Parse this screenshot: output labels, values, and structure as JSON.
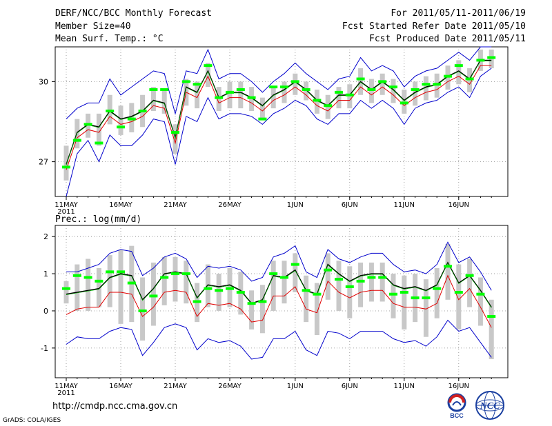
{
  "header": {
    "title": "DERF/NCC/BCC Monthly Forecast",
    "member_size": "Member Size=40",
    "variable": "Mean Surf. Temp.: °C",
    "period": "For 2011/05/11-2011/06/19",
    "start_date": "Fcst Started Refer Date 2011/05/10",
    "produced_date": "Fcst Produced Date 2011/05/11"
  },
  "footer": {
    "url": "http://cmdp.ncc.cma.gov.cn",
    "grads": "GrADS: COLA/IGES",
    "logo_bcc": "BCC",
    "logo_ncc": "NCC"
  },
  "colors": {
    "ensemble_mean": "#000000",
    "red_line": "#e00000",
    "envelope": "#0000cc",
    "control": "#00ff00",
    "box": "#c8c8c8"
  },
  "chart_data": [
    {
      "type": "line",
      "title": "Mean Surf. Temp.: °C",
      "x_tick_labels": [
        "11MAY",
        "16MAY",
        "21MAY",
        "26MAY",
        "1JUN",
        "6JUN",
        "11JUN",
        "16JUN"
      ],
      "x_tick_days": [
        0,
        5,
        10,
        15,
        21,
        26,
        31,
        36
      ],
      "year_label": "2011",
      "ylim": [
        25.7,
        31.3
      ],
      "yticks": [
        27,
        30
      ],
      "days": [
        0,
        1,
        2,
        3,
        4,
        5,
        6,
        7,
        8,
        9,
        10,
        11,
        12,
        13,
        14,
        15,
        16,
        17,
        18,
        19,
        20,
        21,
        22,
        23,
        24,
        25,
        26,
        27,
        28,
        29,
        30,
        31,
        32,
        33,
        34,
        35,
        36,
        37,
        38,
        39
      ],
      "series": [
        {
          "name": "mean",
          "values": [
            26.9,
            28.1,
            28.4,
            28.3,
            28.9,
            28.6,
            28.7,
            28.9,
            29.3,
            29.2,
            27.9,
            29.8,
            29.6,
            30.4,
            29.4,
            29.6,
            29.6,
            29.4,
            29.1,
            29.5,
            29.7,
            30.0,
            29.7,
            29.3,
            29.1,
            29.5,
            29.5,
            30.0,
            29.7,
            30.0,
            29.7,
            29.3,
            29.6,
            29.8,
            29.9,
            30.2,
            30.4,
            30.1,
            30.8,
            30.8
          ]
        },
        {
          "name": "red",
          "values": [
            26.7,
            27.9,
            28.2,
            28.1,
            28.7,
            28.4,
            28.5,
            28.7,
            29.1,
            29.0,
            27.7,
            29.6,
            29.4,
            30.2,
            29.2,
            29.4,
            29.4,
            29.2,
            28.9,
            29.3,
            29.5,
            29.8,
            29.5,
            29.1,
            28.9,
            29.3,
            29.3,
            29.8,
            29.5,
            29.8,
            29.5,
            29.1,
            29.4,
            29.6,
            29.7,
            30.0,
            30.2,
            29.9,
            30.6,
            30.6
          ]
        },
        {
          "name": "blue_upper",
          "values": [
            28.6,
            29.0,
            29.2,
            29.2,
            30.1,
            29.5,
            29.8,
            30.1,
            30.4,
            30.3,
            28.8,
            30.4,
            30.3,
            31.2,
            30.1,
            30.3,
            30.3,
            30.0,
            29.6,
            30.0,
            30.3,
            30.7,
            30.3,
            30.0,
            29.7,
            30.1,
            30.2,
            30.9,
            30.4,
            30.6,
            30.4,
            29.8,
            30.2,
            30.4,
            30.5,
            30.8,
            31.1,
            30.8,
            31.3,
            31.3
          ]
        },
        {
          "name": "blue_lower",
          "values": [
            25.7,
            27.3,
            27.8,
            27.0,
            28.0,
            27.6,
            27.6,
            28.0,
            28.6,
            28.5,
            26.9,
            28.7,
            28.5,
            29.4,
            28.6,
            28.8,
            28.8,
            28.7,
            28.4,
            28.8,
            29.0,
            29.3,
            29.1,
            28.6,
            28.4,
            28.8,
            28.8,
            29.3,
            29.0,
            29.3,
            29.0,
            28.4,
            29.0,
            29.2,
            29.3,
            29.6,
            29.8,
            29.4,
            30.2,
            30.5
          ]
        },
        {
          "name": "control",
          "values": [
            26.8,
            27.8,
            28.4,
            27.7,
            28.9,
            28.3,
            28.6,
            28.9,
            29.7,
            29.7,
            28.1,
            30.0,
            29.9,
            30.6,
            29.4,
            29.6,
            29.7,
            29.4,
            28.6,
            29.8,
            29.8,
            30.0,
            29.7,
            29.3,
            29.1,
            29.6,
            29.5,
            30.1,
            29.7,
            30.0,
            29.8,
            29.2,
            29.7,
            29.9,
            29.9,
            30.2,
            30.6,
            30.1,
            30.8,
            30.9
          ]
        }
      ],
      "box_low": [
        26.3,
        27.5,
        27.9,
        27.6,
        28.4,
        28.0,
        28.1,
        28.3,
        28.9,
        28.8,
        27.3,
        29.1,
        29.0,
        29.8,
        28.9,
        29.0,
        29.0,
        28.9,
        28.6,
        29.0,
        29.2,
        29.5,
        29.3,
        28.8,
        28.6,
        29.0,
        29.0,
        29.5,
        29.2,
        29.5,
        29.2,
        28.8,
        29.1,
        29.3,
        29.4,
        29.7,
        29.9,
        29.6,
        30.4,
        30.5
      ],
      "box_high": [
        27.6,
        28.6,
        28.8,
        28.8,
        29.5,
        29.1,
        29.2,
        29.5,
        29.8,
        29.7,
        28.4,
        30.1,
        30.0,
        30.7,
        29.8,
        30.0,
        30.0,
        29.8,
        29.4,
        29.8,
        30.0,
        30.3,
        30.0,
        29.7,
        29.5,
        29.8,
        29.9,
        30.5,
        30.1,
        30.3,
        30.1,
        29.7,
        30.0,
        30.2,
        30.3,
        30.6,
        30.8,
        30.5,
        31.2,
        31.2
      ]
    },
    {
      "type": "line",
      "title": "Prec.: log(mm/d)",
      "x_tick_labels": [
        "11MAY",
        "16MAY",
        "21MAY",
        "26MAY",
        "1JUN",
        "6JUN",
        "11JUN",
        "16JUN"
      ],
      "x_tick_days": [
        0,
        5,
        10,
        15,
        21,
        26,
        31,
        36
      ],
      "year_label": "2011",
      "ylim": [
        -1.8,
        2.3
      ],
      "yticks": [
        -1,
        0,
        1,
        2
      ],
      "days": [
        0,
        1,
        2,
        3,
        4,
        5,
        6,
        7,
        8,
        9,
        10,
        11,
        12,
        13,
        14,
        15,
        16,
        17,
        18,
        19,
        20,
        21,
        22,
        23,
        24,
        25,
        26,
        27,
        28,
        29,
        30,
        31,
        32,
        33,
        34,
        35,
        36,
        37,
        38,
        39
      ],
      "series": [
        {
          "name": "mean",
          "values": [
            0.45,
            0.5,
            0.55,
            0.6,
            0.9,
            1.0,
            0.95,
            0.3,
            0.6,
            1.0,
            1.05,
            1.0,
            0.35,
            0.7,
            0.65,
            0.7,
            0.55,
            0.2,
            0.3,
            0.95,
            0.9,
            1.1,
            0.55,
            0.45,
            1.25,
            1.0,
            0.8,
            0.95,
            1.0,
            1.0,
            0.7,
            0.6,
            0.65,
            0.55,
            0.7,
            1.3,
            0.75,
            0.95,
            0.55,
            0.1
          ]
        },
        {
          "name": "red",
          "values": [
            -0.1,
            0.05,
            0.1,
            0.1,
            0.5,
            0.5,
            0.45,
            -0.15,
            0.1,
            0.5,
            0.55,
            0.5,
            -0.15,
            0.2,
            0.15,
            0.2,
            0.05,
            -0.3,
            -0.25,
            0.4,
            0.4,
            0.65,
            0.05,
            -0.05,
            0.8,
            0.5,
            0.35,
            0.5,
            0.55,
            0.55,
            0.2,
            0.1,
            0.1,
            0.05,
            0.2,
            0.95,
            0.3,
            0.6,
            0.1,
            -0.45
          ]
        },
        {
          "name": "blue_upper",
          "values": [
            1.05,
            1.05,
            1.15,
            1.25,
            1.55,
            1.65,
            1.6,
            0.95,
            1.15,
            1.45,
            1.55,
            1.4,
            0.9,
            1.2,
            1.15,
            1.2,
            1.1,
            0.8,
            0.9,
            1.45,
            1.55,
            1.75,
            1.05,
            0.9,
            1.65,
            1.4,
            1.3,
            1.45,
            1.55,
            1.55,
            1.25,
            1.05,
            1.1,
            1.0,
            1.25,
            1.85,
            1.3,
            1.45,
            1.05,
            0.55
          ]
        },
        {
          "name": "blue_lower",
          "values": [
            -0.9,
            -0.7,
            -0.75,
            -0.75,
            -0.55,
            -0.45,
            -0.5,
            -1.2,
            -0.85,
            -0.45,
            -0.35,
            -0.45,
            -1.05,
            -0.75,
            -0.85,
            -0.8,
            -0.95,
            -1.3,
            -1.25,
            -0.75,
            -0.75,
            -0.55,
            -1.05,
            -1.2,
            -0.55,
            -0.6,
            -0.75,
            -0.55,
            -0.55,
            -0.55,
            -0.75,
            -0.85,
            -0.8,
            -0.95,
            -0.7,
            -0.25,
            -0.55,
            -0.45,
            -0.85,
            -1.25
          ]
        },
        {
          "name": "control",
          "values": [
            0.6,
            0.95,
            0.9,
            0.8,
            1.05,
            1.05,
            0.75,
            0.0,
            0.4,
            0.9,
            1.0,
            1.0,
            0.25,
            0.6,
            0.55,
            0.6,
            0.5,
            0.2,
            0.25,
            1.0,
            0.9,
            1.25,
            0.55,
            0.45,
            1.1,
            0.85,
            0.65,
            0.8,
            0.9,
            0.9,
            0.45,
            0.5,
            0.35,
            0.35,
            0.6,
            1.2,
            0.5,
            0.95,
            0.45,
            -0.15
          ]
        }
      ],
      "box_low": [
        0.2,
        0.0,
        0.0,
        0.1,
        0.1,
        -0.35,
        -0.3,
        -0.8,
        -0.4,
        0.15,
        0.25,
        0.2,
        -0.3,
        0.1,
        0.0,
        0.1,
        -0.1,
        -0.5,
        -0.6,
        0.0,
        0.2,
        0.5,
        -0.3,
        -0.65,
        0.3,
        0.0,
        -0.2,
        0.1,
        0.25,
        0.25,
        -0.2,
        -0.5,
        -0.3,
        -0.7,
        -0.2,
        0.3,
        -0.5,
        0.1,
        -0.4,
        -1.3
      ],
      "box_high": [
        0.8,
        1.25,
        1.4,
        1.15,
        1.5,
        1.65,
        1.75,
        0.9,
        1.3,
        1.45,
        1.45,
        1.35,
        0.75,
        1.25,
        1.0,
        1.15,
        1.05,
        0.55,
        0.7,
        1.35,
        1.35,
        1.55,
        0.95,
        0.75,
        1.55,
        1.35,
        1.2,
        1.3,
        1.3,
        1.3,
        1.0,
        0.95,
        1.0,
        0.85,
        1.15,
        1.8,
        1.25,
        1.4,
        0.9,
        0.3
      ]
    }
  ]
}
